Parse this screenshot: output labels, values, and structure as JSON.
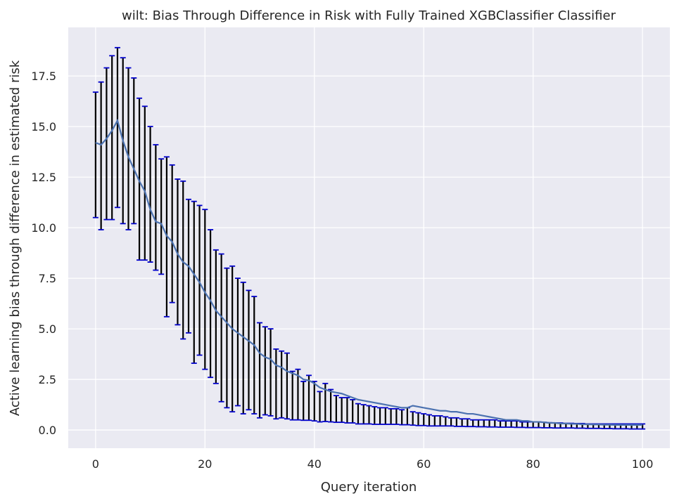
{
  "chart_data": {
    "type": "line",
    "title": "wilt: Bias Through Difference in Risk with Fully Trained XGBClassifier Classifier",
    "xlabel": "Query iteration",
    "ylabel": "Active learning bias through difference in estimated risk",
    "xlim": [
      -5,
      105
    ],
    "ylim": [
      -0.9,
      19.9
    ],
    "x_ticks": [
      0,
      20,
      40,
      60,
      80,
      100
    ],
    "x_tick_labels": [
      "0",
      "20",
      "40",
      "60",
      "80",
      "100"
    ],
    "y_ticks": [
      0.0,
      2.5,
      5.0,
      7.5,
      10.0,
      12.5,
      15.0,
      17.5
    ],
    "y_tick_labels": [
      "0.0",
      "2.5",
      "5.0",
      "7.5",
      "10.0",
      "12.5",
      "15.0",
      "17.5"
    ],
    "grid": true,
    "background": "#EAEAF2",
    "line_color": "#4C72B0",
    "errorbar_color": "#000000",
    "cap_color": "#0000CC",
    "series": [
      {
        "x": [
          0,
          1,
          2,
          3,
          4,
          5,
          6,
          7,
          8,
          9,
          10,
          11,
          12,
          13,
          14,
          15,
          16,
          17,
          18,
          19,
          20,
          21,
          22,
          23,
          24,
          25,
          26,
          27,
          28,
          29,
          30,
          31,
          32,
          33,
          34,
          35,
          36,
          37,
          38,
          39,
          40,
          41,
          42,
          43,
          44,
          45,
          46,
          47,
          48,
          49,
          50,
          51,
          52,
          53,
          54,
          55,
          56,
          57,
          58,
          59,
          60,
          61,
          62,
          63,
          64,
          65,
          66,
          67,
          68,
          69,
          70,
          71,
          72,
          73,
          74,
          75,
          76,
          77,
          78,
          79,
          80,
          81,
          82,
          83,
          84,
          85,
          86,
          87,
          88,
          89,
          90,
          91,
          92,
          93,
          94,
          95,
          96,
          97,
          98,
          99,
          100
        ],
        "y": [
          14.2,
          14.1,
          14.4,
          14.8,
          15.3,
          14.3,
          13.5,
          12.9,
          12.3,
          11.8,
          10.9,
          10.3,
          10.2,
          9.6,
          9.3,
          8.7,
          8.3,
          8.1,
          7.7,
          7.3,
          6.8,
          6.4,
          5.9,
          5.6,
          5.3,
          5.0,
          4.8,
          4.6,
          4.4,
          4.2,
          3.8,
          3.6,
          3.5,
          3.2,
          3.1,
          2.9,
          2.8,
          2.7,
          2.5,
          2.45,
          2.3,
          2.1,
          2.0,
          1.9,
          1.85,
          1.8,
          1.7,
          1.6,
          1.5,
          1.45,
          1.4,
          1.35,
          1.3,
          1.25,
          1.2,
          1.15,
          1.1,
          1.1,
          1.2,
          1.15,
          1.1,
          1.05,
          1.0,
          0.95,
          0.95,
          0.9,
          0.9,
          0.85,
          0.8,
          0.8,
          0.75,
          0.7,
          0.65,
          0.6,
          0.55,
          0.5,
          0.5,
          0.5,
          0.45,
          0.45,
          0.4,
          0.4,
          0.38,
          0.35,
          0.35,
          0.32,
          0.32,
          0.3,
          0.3,
          0.28,
          0.28,
          0.27,
          0.27,
          0.26,
          0.26,
          0.25,
          0.25,
          0.25,
          0.25,
          0.25,
          0.25
        ],
        "lower": [
          10.5,
          9.9,
          10.4,
          10.4,
          11.0,
          10.2,
          9.9,
          10.2,
          8.4,
          8.4,
          8.3,
          7.9,
          7.7,
          5.6,
          6.3,
          5.2,
          4.5,
          4.8,
          3.3,
          3.7,
          3.0,
          2.6,
          2.3,
          1.4,
          1.1,
          0.9,
          1.2,
          0.8,
          1.0,
          0.8,
          0.6,
          0.75,
          0.7,
          0.55,
          0.6,
          0.55,
          0.5,
          0.5,
          0.48,
          0.48,
          0.45,
          0.4,
          0.42,
          0.4,
          0.38,
          0.38,
          0.35,
          0.35,
          0.3,
          0.3,
          0.3,
          0.28,
          0.28,
          0.28,
          0.28,
          0.28,
          0.26,
          0.26,
          0.24,
          0.22,
          0.22,
          0.2,
          0.2,
          0.2,
          0.2,
          0.2,
          0.18,
          0.18,
          0.17,
          0.17,
          0.16,
          0.16,
          0.15,
          0.15,
          0.14,
          0.14,
          0.14,
          0.13,
          0.13,
          0.12,
          0.12,
          0.12,
          0.11,
          0.11,
          0.1,
          0.1,
          0.1,
          0.1,
          0.09,
          0.09,
          0.08,
          0.08,
          0.08,
          0.07,
          0.07,
          0.06,
          0.06,
          0.06,
          0.05,
          0.05,
          0.05
        ],
        "upper": [
          16.7,
          17.2,
          17.9,
          18.5,
          18.9,
          18.4,
          17.9,
          17.4,
          16.4,
          16.0,
          15.0,
          14.1,
          13.4,
          13.5,
          13.1,
          12.4,
          12.3,
          11.4,
          11.3,
          11.1,
          10.9,
          9.9,
          8.9,
          8.7,
          8.0,
          8.1,
          7.5,
          7.3,
          6.9,
          6.6,
          5.3,
          5.1,
          5.0,
          4.0,
          3.9,
          3.8,
          2.9,
          3.0,
          2.4,
          2.7,
          2.4,
          1.9,
          2.3,
          2.0,
          1.7,
          1.6,
          1.6,
          1.5,
          1.3,
          1.25,
          1.2,
          1.15,
          1.1,
          1.1,
          1.05,
          1.05,
          1.0,
          1.1,
          0.9,
          0.85,
          0.8,
          0.75,
          0.7,
          0.7,
          0.65,
          0.6,
          0.6,
          0.55,
          0.55,
          0.5,
          0.5,
          0.5,
          0.5,
          0.5,
          0.45,
          0.45,
          0.45,
          0.45,
          0.4,
          0.4,
          0.4,
          0.4,
          0.38,
          0.36,
          0.35,
          0.35,
          0.33,
          0.33,
          0.32,
          0.32,
          0.3,
          0.3,
          0.3,
          0.3,
          0.3,
          0.3,
          0.3,
          0.3,
          0.3,
          0.3,
          0.3
        ]
      }
    ]
  }
}
